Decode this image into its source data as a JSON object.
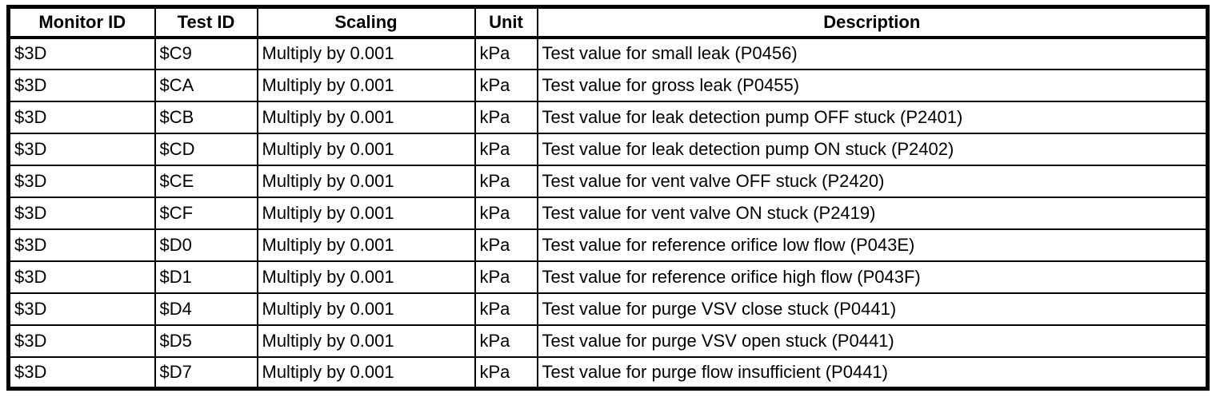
{
  "table": {
    "name": "mode-06-test-value-table",
    "columns": [
      {
        "key": "monitor-id",
        "label": "Monitor ID"
      },
      {
        "key": "test-id",
        "label": "Test ID"
      },
      {
        "key": "scaling",
        "label": "Scaling"
      },
      {
        "key": "unit",
        "label": "Unit"
      },
      {
        "key": "description",
        "label": "Description"
      }
    ],
    "rows": [
      [
        "$3D",
        "$C9",
        "Multiply by 0.001",
        "kPa",
        "Test value for small leak (P0456)"
      ],
      [
        "$3D",
        "$CA",
        "Multiply by 0.001",
        "kPa",
        "Test value for gross leak (P0455)"
      ],
      [
        "$3D",
        "$CB",
        "Multiply by 0.001",
        "kPa",
        "Test value for leak detection pump OFF stuck (P2401)"
      ],
      [
        "$3D",
        "$CD",
        "Multiply by 0.001",
        "kPa",
        "Test value for leak detection pump ON stuck (P2402)"
      ],
      [
        "$3D",
        "$CE",
        "Multiply by 0.001",
        "kPa",
        "Test value for vent valve OFF stuck (P2420)"
      ],
      [
        "$3D",
        "$CF",
        "Multiply by 0.001",
        "kPa",
        "Test value for vent valve ON stuck (P2419)"
      ],
      [
        "$3D",
        "$D0",
        "Multiply by 0.001",
        "kPa",
        "Test value for reference orifice low flow (P043E)"
      ],
      [
        "$3D",
        "$D1",
        "Multiply by 0.001",
        "kPa",
        "Test value for reference orifice high flow (P043F)"
      ],
      [
        "$3D",
        "$D4",
        "Multiply by 0.001",
        "kPa",
        "Test value for purge VSV close stuck (P0441)"
      ],
      [
        "$3D",
        "$D5",
        "Multiply by 0.001",
        "kPa",
        "Test value for purge VSV open stuck (P0441)"
      ],
      [
        "$3D",
        "$D7",
        "Multiply by 0.001",
        "kPa",
        "Test value for purge flow insufficient (P0441)"
      ]
    ],
    "colors": {
      "border": "#000000",
      "background": "#ffffff",
      "text": "#000000"
    }
  }
}
